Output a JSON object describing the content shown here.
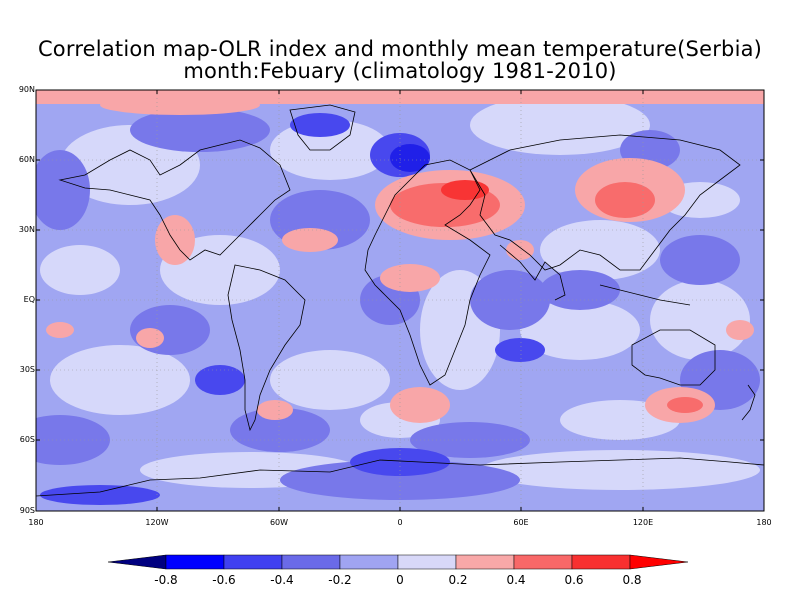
{
  "title_line1": "Correlation map-OLR index and monthly mean temperature(Serbia)",
  "title_line2": "month:Febuary (climatology 1981-2010)",
  "lat_ticks": [
    "90N",
    "60N",
    "30N",
    "EQ",
    "30S",
    "60S",
    "90S"
  ],
  "lon_ticks": [
    "180",
    "120W",
    "60W",
    "0",
    "60E",
    "120E",
    "180"
  ],
  "colorbar": {
    "labels": [
      "-0.8",
      "-0.6",
      "-0.4",
      "-0.2",
      "0",
      "0.2",
      "0.4",
      "0.6",
      "0.8"
    ],
    "colors": [
      "#000080",
      "#0000ff",
      "#4040f0",
      "#6a6ae8",
      "#a0a4f2",
      "#d8d8f8",
      "#f8a8a8",
      "#f86868",
      "#f83030",
      "#ff0000"
    ]
  },
  "palette": {
    "c_m06": "#2020e8",
    "c_m04": "#4848ee",
    "c_m02": "#7878ea",
    "c_m00": "#a0a6f2",
    "c_p00": "#d6d8fa",
    "c_p02": "#f8a6a8",
    "c_p04": "#f86c6c",
    "c_p06": "#f83434"
  }
}
